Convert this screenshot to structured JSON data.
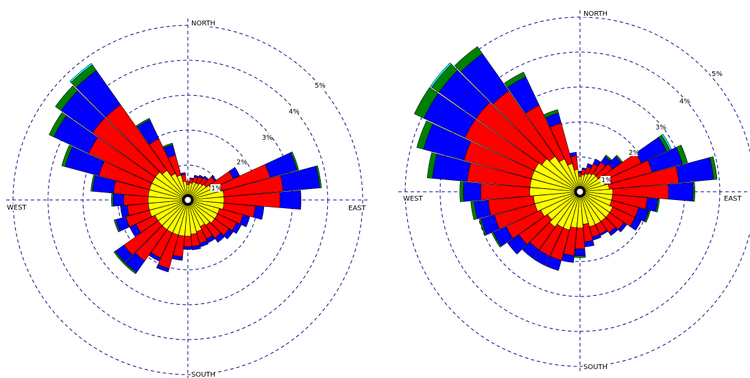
{
  "chart_data": [
    {
      "type": "windrose",
      "compass": {
        "north": "NORTH",
        "south": "SOUTH",
        "east": "EAST",
        "west": "WEST"
      },
      "ring_labels": [
        "1%",
        "2%",
        "3%",
        "4%",
        "5%"
      ],
      "bin_colors": [
        "#ffff00",
        "#ff0000",
        "#0000ff",
        "#008000",
        "#00ffff"
      ],
      "directions": [
        {
          "deg": 0,
          "values": [
            0.3,
            0.1,
            0.0,
            0,
            0
          ]
        },
        {
          "deg": 10,
          "values": [
            0.35,
            0.12,
            0.03,
            0,
            0
          ]
        },
        {
          "deg": 20,
          "values": [
            0.4,
            0.15,
            0.05,
            0,
            0
          ]
        },
        {
          "deg": 30,
          "values": [
            0.4,
            0.2,
            0.05,
            0,
            0
          ]
        },
        {
          "deg": 40,
          "values": [
            0.45,
            0.2,
            0.05,
            0,
            0
          ]
        },
        {
          "deg": 50,
          "values": [
            0.5,
            0.3,
            0.05,
            0,
            0
          ]
        },
        {
          "deg": 60,
          "values": [
            0.6,
            0.7,
            0.2,
            0,
            0
          ]
        },
        {
          "deg": 70,
          "values": [
            0.8,
            1.5,
            0.8,
            0.05,
            0
          ]
        },
        {
          "deg": 80,
          "values": [
            0.9,
            1.7,
            1.05,
            0.05,
            0
          ]
        },
        {
          "deg": 90,
          "values": [
            0.9,
            1.6,
            0.6,
            0,
            0
          ]
        },
        {
          "deg": 100,
          "values": [
            0.9,
            0.9,
            0.25,
            0,
            0
          ]
        },
        {
          "deg": 110,
          "values": [
            0.8,
            0.7,
            0.2,
            0,
            0
          ]
        },
        {
          "deg": 120,
          "values": [
            0.8,
            0.6,
            0.15,
            0,
            0
          ]
        },
        {
          "deg": 130,
          "values": [
            0.8,
            0.5,
            0.15,
            0,
            0
          ]
        },
        {
          "deg": 140,
          "values": [
            0.75,
            0.45,
            0.15,
            0,
            0
          ]
        },
        {
          "deg": 150,
          "values": [
            0.7,
            0.4,
            0.12,
            0,
            0
          ]
        },
        {
          "deg": 160,
          "values": [
            0.8,
            0.35,
            0.1,
            0,
            0
          ]
        },
        {
          "deg": 170,
          "values": [
            0.85,
            0.35,
            0.1,
            0,
            0
          ]
        },
        {
          "deg": 180,
          "values": [
            0.9,
            0.3,
            0.08,
            0,
            0
          ]
        },
        {
          "deg": 190,
          "values": [
            0.9,
            0.6,
            0.1,
            0,
            0
          ]
        },
        {
          "deg": 200,
          "values": [
            0.9,
            1.0,
            0.1,
            0,
            0
          ]
        },
        {
          "deg": 210,
          "values": [
            0.9,
            0.8,
            0.1,
            0,
            0
          ]
        },
        {
          "deg": 220,
          "values": [
            0.9,
            1.1,
            0.4,
            0.05,
            0
          ]
        },
        {
          "deg": 230,
          "values": [
            0.9,
            1.2,
            0.3,
            0.05,
            0
          ]
        },
        {
          "deg": 240,
          "values": [
            0.9,
            0.6,
            0.2,
            0,
            0
          ]
        },
        {
          "deg": 250,
          "values": [
            1.0,
            0.7,
            0.3,
            0.05,
            0
          ]
        },
        {
          "deg": 260,
          "values": [
            1.0,
            0.6,
            0.2,
            0,
            0
          ]
        },
        {
          "deg": 270,
          "values": [
            1.0,
            0.7,
            0.3,
            0.05,
            0
          ]
        },
        {
          "deg": 280,
          "values": [
            1.0,
            1.0,
            0.6,
            0.05,
            0
          ]
        },
        {
          "deg": 290,
          "values": [
            1.0,
            1.5,
            1.0,
            0.1,
            0
          ]
        },
        {
          "deg": 300,
          "values": [
            1.0,
            2.0,
            1.1,
            0.15,
            0
          ]
        },
        {
          "deg": 310,
          "values": [
            1.0,
            2.2,
            1.1,
            0.2,
            0
          ]
        },
        {
          "deg": 320,
          "values": [
            0.9,
            2.3,
            1.2,
            0.2,
            0.05
          ]
        },
        {
          "deg": 330,
          "values": [
            0.7,
            1.1,
            0.6,
            0.05,
            0
          ]
        },
        {
          "deg": 340,
          "values": [
            0.6,
            0.6,
            0.3,
            0.05,
            0
          ]
        },
        {
          "deg": 350,
          "values": [
            0.4,
            0.2,
            0.05,
            0,
            0
          ]
        }
      ]
    },
    {
      "type": "windrose",
      "compass": {
        "north": "NORTH",
        "south": "SOUTH",
        "east": "EAST",
        "west": "WEST"
      },
      "ring_labels": [
        "1%",
        "2%",
        "3%",
        "4%",
        "5%"
      ],
      "bin_colors": [
        "#ffff00",
        "#ff0000",
        "#0000ff",
        "#008000",
        "#00ffff"
      ],
      "directions": [
        {
          "deg": 0,
          "values": [
            0.3,
            0.1,
            0.05,
            0,
            0
          ]
        },
        {
          "deg": 10,
          "values": [
            0.35,
            0.15,
            0.05,
            0,
            0
          ]
        },
        {
          "deg": 20,
          "values": [
            0.4,
            0.2,
            0.1,
            0,
            0
          ]
        },
        {
          "deg": 30,
          "values": [
            0.45,
            0.3,
            0.15,
            0,
            0
          ]
        },
        {
          "deg": 40,
          "values": [
            0.5,
            0.4,
            0.2,
            0.05,
            0
          ]
        },
        {
          "deg": 50,
          "values": [
            0.5,
            0.5,
            0.3,
            0.05,
            0
          ]
        },
        {
          "deg": 60,
          "values": [
            0.6,
            1.2,
            0.8,
            0.1,
            0.05
          ]
        },
        {
          "deg": 70,
          "values": [
            0.6,
            1.4,
            0.9,
            0.15,
            0
          ]
        },
        {
          "deg": 80,
          "values": [
            0.7,
            2.0,
            1.0,
            0.1,
            0
          ]
        },
        {
          "deg": 90,
          "values": [
            0.8,
            1.6,
            0.7,
            0.05,
            0
          ]
        },
        {
          "deg": 100,
          "values": [
            0.8,
            1.0,
            0.3,
            0.05,
            0
          ]
        },
        {
          "deg": 110,
          "values": [
            0.8,
            0.8,
            0.3,
            0.05,
            0
          ]
        },
        {
          "deg": 120,
          "values": [
            0.9,
            0.7,
            0.2,
            0,
            0
          ]
        },
        {
          "deg": 130,
          "values": [
            0.9,
            0.5,
            0.1,
            0,
            0
          ]
        },
        {
          "deg": 140,
          "values": [
            0.9,
            0.4,
            0.1,
            0,
            0
          ]
        },
        {
          "deg": 150,
          "values": [
            0.9,
            0.3,
            0.05,
            0,
            0
          ]
        },
        {
          "deg": 160,
          "values": [
            0.9,
            0.3,
            0.1,
            0,
            0
          ]
        },
        {
          "deg": 170,
          "values": [
            0.8,
            0.5,
            0.15,
            0,
            0
          ]
        },
        {
          "deg": 180,
          "values": [
            0.9,
            0.6,
            0.2,
            0.05,
            0
          ]
        },
        {
          "deg": 190,
          "values": [
            0.9,
            0.8,
            0.2,
            0,
            0
          ]
        },
        {
          "deg": 200,
          "values": [
            1.0,
            0.9,
            0.3,
            0,
            0
          ]
        },
        {
          "deg": 210,
          "values": [
            1.0,
            0.9,
            0.3,
            0,
            0
          ]
        },
        {
          "deg": 220,
          "values": [
            1.1,
            0.8,
            0.3,
            0,
            0
          ]
        },
        {
          "deg": 230,
          "values": [
            1.0,
            1.0,
            0.4,
            0,
            0
          ]
        },
        {
          "deg": 240,
          "values": [
            1.1,
            1.1,
            0.4,
            0.05,
            0
          ]
        },
        {
          "deg": 250,
          "values": [
            1.2,
            1.2,
            0.4,
            0.05,
            0
          ]
        },
        {
          "deg": 260,
          "values": [
            1.2,
            1.3,
            0.4,
            0.1,
            0
          ]
        },
        {
          "deg": 270,
          "values": [
            1.3,
            1.4,
            0.5,
            0.1,
            0
          ]
        },
        {
          "deg": 280,
          "values": [
            1.3,
            1.8,
            1.0,
            0.15,
            0
          ]
        },
        {
          "deg": 290,
          "values": [
            1.3,
            2.0,
            1.2,
            0.2,
            0
          ]
        },
        {
          "deg": 300,
          "values": [
            1.3,
            2.2,
            1.3,
            0.3,
            0
          ]
        },
        {
          "deg": 310,
          "values": [
            1.2,
            2.3,
            1.3,
            0.25,
            0.05
          ]
        },
        {
          "deg": 320,
          "values": [
            1.1,
            2.3,
            1.3,
            0.25,
            0
          ]
        },
        {
          "deg": 330,
          "values": [
            0.9,
            1.7,
            0.9,
            0.15,
            0
          ]
        },
        {
          "deg": 340,
          "values": [
            0.7,
            1.2,
            0.3,
            0.1,
            0
          ]
        },
        {
          "deg": 350,
          "values": [
            0.5,
            0.4,
            0.1,
            0,
            0
          ]
        }
      ]
    }
  ]
}
